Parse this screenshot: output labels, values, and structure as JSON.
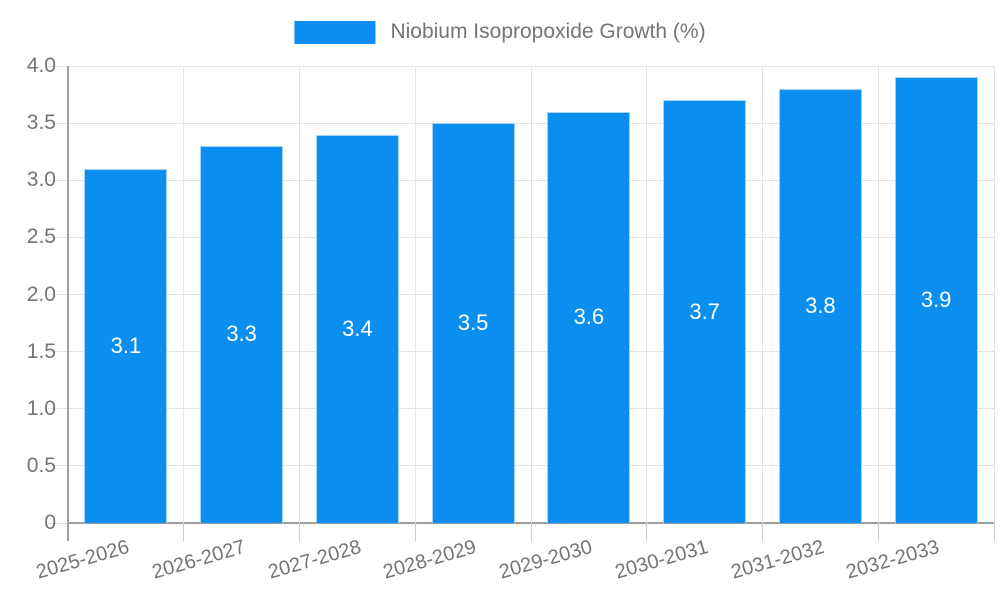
{
  "legend": {
    "swatch_icon": "legend-color-swatch",
    "label": "Niobium Isopropoxide Growth (%)"
  },
  "chart_data": {
    "type": "bar",
    "title": "Niobium Isopropoxide Growth (%)",
    "categories": [
      "2025-2026",
      "2026-2027",
      "2027-2028",
      "2028-2029",
      "2029-2030",
      "2030-2031",
      "2031-2032",
      "2032-2033"
    ],
    "values": [
      3.1,
      3.3,
      3.4,
      3.5,
      3.6,
      3.7,
      3.8,
      3.9
    ],
    "bar_labels": [
      "3.1",
      "3.3",
      "3.4",
      "3.5",
      "3.6",
      "3.7",
      "3.8",
      "3.9"
    ],
    "xlabel": "",
    "ylabel": "",
    "ylim": [
      0,
      4
    ],
    "ytick_labels": [
      "0",
      "0.5",
      "1.0",
      "1.5",
      "2.0",
      "2.5",
      "3.0",
      "3.5",
      "4.0"
    ],
    "grid": "both",
    "legend_position": "top-center",
    "colors": {
      "bar_fill": "#0a8ff0",
      "bar_border": "#a3d4fa",
      "grid": "#e3e3e3",
      "axis": "#9e9e9e",
      "tick": "#cccccc",
      "axis_text": "#757575",
      "value_label_text": "#ffffff",
      "background": "#ffffff"
    }
  }
}
